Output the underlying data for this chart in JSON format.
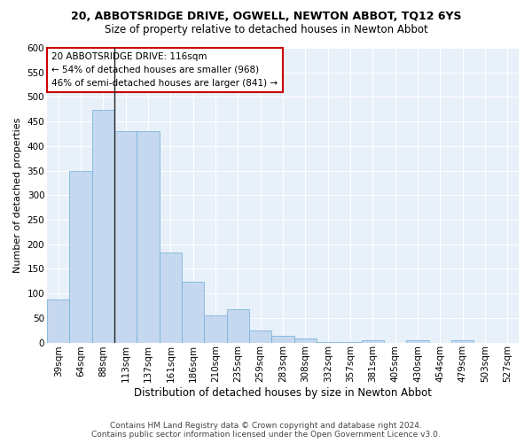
{
  "title": "20, ABBOTSRIDGE DRIVE, OGWELL, NEWTON ABBOT, TQ12 6YS",
  "subtitle": "Size of property relative to detached houses in Newton Abbot",
  "xlabel": "Distribution of detached houses by size in Newton Abbot",
  "ylabel": "Number of detached properties",
  "categories": [
    "39sqm",
    "64sqm",
    "88sqm",
    "113sqm",
    "137sqm",
    "161sqm",
    "186sqm",
    "210sqm",
    "235sqm",
    "259sqm",
    "283sqm",
    "308sqm",
    "332sqm",
    "357sqm",
    "381sqm",
    "405sqm",
    "430sqm",
    "454sqm",
    "479sqm",
    "503sqm",
    "527sqm"
  ],
  "values": [
    88,
    349,
    473,
    431,
    431,
    184,
    123,
    56,
    68,
    25,
    13,
    8,
    1,
    1,
    5,
    0,
    5,
    0,
    5,
    0,
    0
  ],
  "bar_color": "#c5d8f0",
  "bar_edge_color": "#6baed6",
  "annotation_box_text": "20 ABBOTSRIDGE DRIVE: 116sqm\n← 54% of detached houses are smaller (968)\n46% of semi-detached houses are larger (841) →",
  "box_edge_color": "#cc0000",
  "ylim": [
    0,
    600
  ],
  "yticks": [
    0,
    50,
    100,
    150,
    200,
    250,
    300,
    350,
    400,
    450,
    500,
    550,
    600
  ],
  "footer_line1": "Contains HM Land Registry data © Crown copyright and database right 2024.",
  "footer_line2": "Contains public sector information licensed under the Open Government Licence v3.0.",
  "bg_color": "#e8f0fa",
  "grid_color": "#ffffff",
  "title_fontsize": 9,
  "subtitle_fontsize": 8.5,
  "xlabel_fontsize": 8.5,
  "ylabel_fontsize": 8,
  "tick_fontsize": 7.5,
  "annotation_fontsize": 7.5,
  "footer_fontsize": 6.5,
  "vline_x": 2.5
}
